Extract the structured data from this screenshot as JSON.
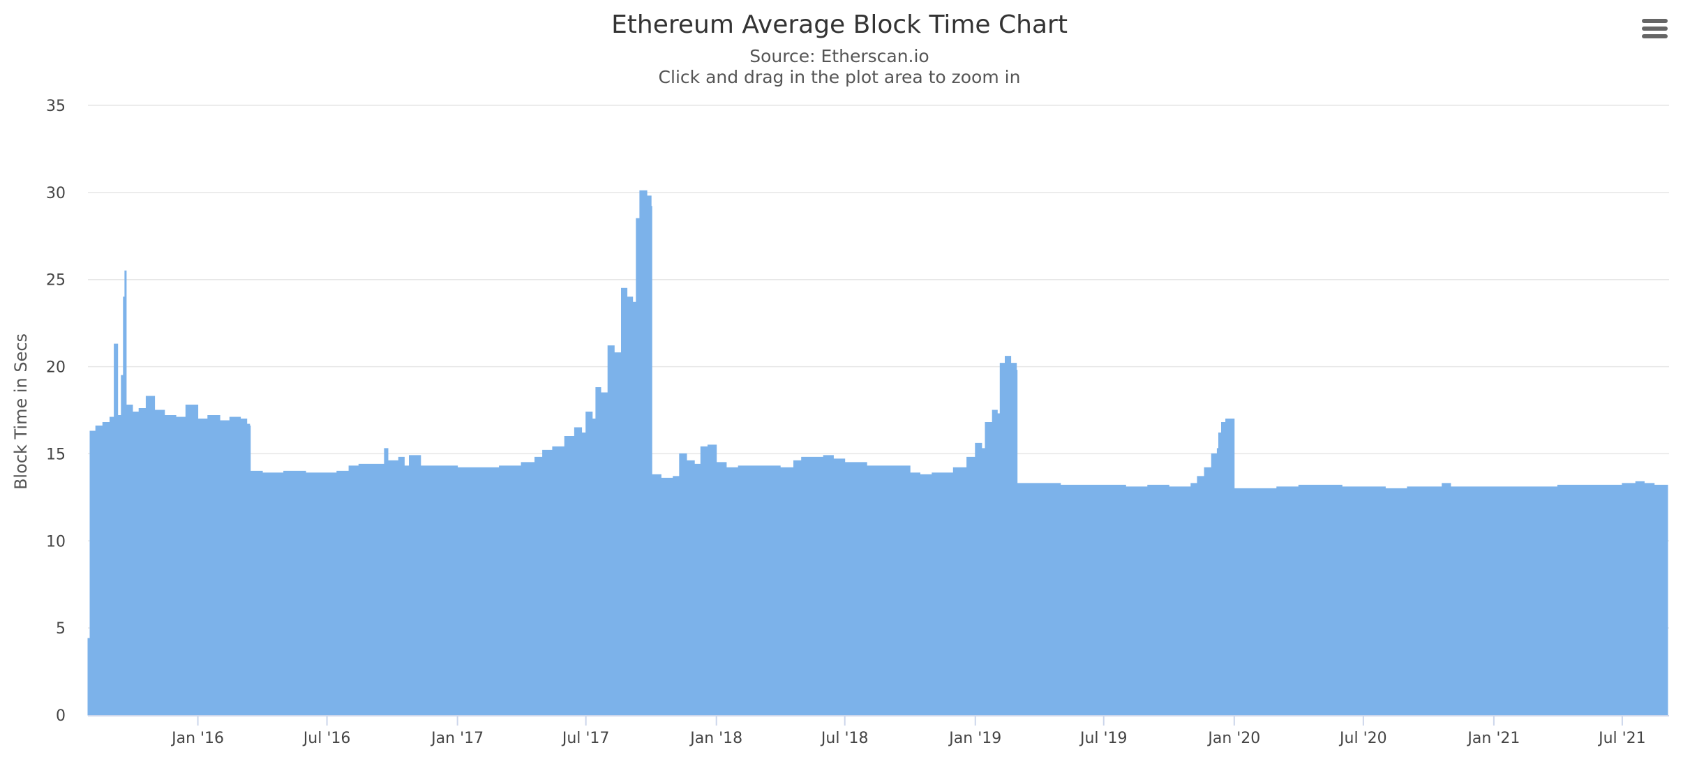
{
  "colors": {
    "series": "#7cb2ea",
    "grid": "#e6e6e6",
    "axis_line": "#ccd6eb",
    "menu_icon": "#666666"
  },
  "menu": {
    "icon": "hamburger-menu-icon"
  },
  "chart_data": {
    "type": "area",
    "title": "Ethereum Average Block Time Chart",
    "subtitle": "Source: Etherscan.io",
    "subtitle2": "Click and drag in the plot area to zoom in",
    "xlabel": "",
    "ylabel": "Block Time in Secs",
    "xlim": [
      "2015-07-30",
      "2021-09-05"
    ],
    "ylim": [
      0,
      35
    ],
    "yticks": [
      0,
      5,
      10,
      15,
      20,
      25,
      30,
      35
    ],
    "xticks": [
      "2016-01-01",
      "2016-07-01",
      "2017-01-01",
      "2017-07-01",
      "2018-01-01",
      "2018-07-01",
      "2019-01-01",
      "2019-07-01",
      "2020-01-01",
      "2020-07-01",
      "2021-01-01",
      "2021-07-01"
    ],
    "xtick_labels": [
      "Jan '16",
      "Jul '16",
      "Jan '17",
      "Jul '17",
      "Jan '18",
      "Jul '18",
      "Jan '19",
      "Jul '19",
      "Jan '20",
      "Jul '20",
      "Jan '21",
      "Jul '21"
    ],
    "grid": true,
    "legend": "none",
    "series": [
      {
        "points": [
          [
            "2015-07-30",
            4.4
          ],
          [
            "2015-08-02",
            16.3
          ],
          [
            "2015-08-10",
            16.6
          ],
          [
            "2015-08-20",
            16.8
          ],
          [
            "2015-08-30",
            17.1
          ],
          [
            "2015-09-05",
            21.3
          ],
          [
            "2015-09-10",
            17.2
          ],
          [
            "2015-09-15",
            19.5
          ],
          [
            "2015-09-18",
            24.0
          ],
          [
            "2015-09-20",
            25.5
          ],
          [
            "2015-09-22",
            17.8
          ],
          [
            "2015-10-01",
            17.4
          ],
          [
            "2015-10-10",
            17.6
          ],
          [
            "2015-10-20",
            18.3
          ],
          [
            "2015-11-01",
            17.5
          ],
          [
            "2015-11-15",
            17.2
          ],
          [
            "2015-12-01",
            17.1
          ],
          [
            "2015-12-15",
            17.8
          ],
          [
            "2016-01-01",
            17.0
          ],
          [
            "2016-01-15",
            17.2
          ],
          [
            "2016-02-01",
            16.9
          ],
          [
            "2016-02-15",
            17.1
          ],
          [
            "2016-03-01",
            17.0
          ],
          [
            "2016-03-10",
            16.7
          ],
          [
            "2016-03-14",
            16.6
          ],
          [
            "2016-03-15",
            14.0
          ],
          [
            "2016-04-01",
            13.9
          ],
          [
            "2016-05-01",
            14.0
          ],
          [
            "2016-06-01",
            13.9
          ],
          [
            "2016-07-01",
            13.9
          ],
          [
            "2016-07-15",
            14.0
          ],
          [
            "2016-08-01",
            14.3
          ],
          [
            "2016-08-15",
            14.4
          ],
          [
            "2016-09-01",
            14.4
          ],
          [
            "2016-09-20",
            15.3
          ],
          [
            "2016-09-25",
            14.6
          ],
          [
            "2016-10-10",
            14.8
          ],
          [
            "2016-10-18",
            14.3
          ],
          [
            "2016-10-25",
            14.9
          ],
          [
            "2016-11-10",
            14.3
          ],
          [
            "2016-12-01",
            14.3
          ],
          [
            "2017-01-01",
            14.2
          ],
          [
            "2017-02-01",
            14.2
          ],
          [
            "2017-03-01",
            14.3
          ],
          [
            "2017-04-01",
            14.5
          ],
          [
            "2017-04-20",
            14.8
          ],
          [
            "2017-05-01",
            15.2
          ],
          [
            "2017-05-15",
            15.4
          ],
          [
            "2017-06-01",
            16.0
          ],
          [
            "2017-06-15",
            16.5
          ],
          [
            "2017-06-25",
            16.2
          ],
          [
            "2017-07-01",
            17.4
          ],
          [
            "2017-07-10",
            17.0
          ],
          [
            "2017-07-15",
            18.8
          ],
          [
            "2017-07-22",
            18.5
          ],
          [
            "2017-08-01",
            21.2
          ],
          [
            "2017-08-10",
            20.8
          ],
          [
            "2017-08-20",
            24.5
          ],
          [
            "2017-08-28",
            24.0
          ],
          [
            "2017-09-05",
            23.7
          ],
          [
            "2017-09-10",
            28.5
          ],
          [
            "2017-09-15",
            30.1
          ],
          [
            "2017-09-25",
            29.8
          ],
          [
            "2017-10-01",
            29.2
          ],
          [
            "2017-10-02",
            13.8
          ],
          [
            "2017-10-15",
            13.6
          ],
          [
            "2017-11-01",
            13.7
          ],
          [
            "2017-11-10",
            15.0
          ],
          [
            "2017-11-20",
            14.6
          ],
          [
            "2017-12-01",
            14.4
          ],
          [
            "2017-12-10",
            15.4
          ],
          [
            "2017-12-20",
            15.5
          ],
          [
            "2018-01-01",
            14.5
          ],
          [
            "2018-01-15",
            14.2
          ],
          [
            "2018-02-01",
            14.3
          ],
          [
            "2018-03-01",
            14.3
          ],
          [
            "2018-04-01",
            14.2
          ],
          [
            "2018-04-20",
            14.6
          ],
          [
            "2018-05-01",
            14.8
          ],
          [
            "2018-06-01",
            14.9
          ],
          [
            "2018-06-15",
            14.7
          ],
          [
            "2018-07-01",
            14.5
          ],
          [
            "2018-08-01",
            14.3
          ],
          [
            "2018-09-01",
            14.3
          ],
          [
            "2018-10-01",
            13.9
          ],
          [
            "2018-10-15",
            13.8
          ],
          [
            "2018-11-01",
            13.9
          ],
          [
            "2018-12-01",
            14.2
          ],
          [
            "2018-12-20",
            14.8
          ],
          [
            "2019-01-01",
            15.6
          ],
          [
            "2019-01-10",
            15.3
          ],
          [
            "2019-01-15",
            16.8
          ],
          [
            "2019-01-25",
            17.5
          ],
          [
            "2019-02-01",
            17.3
          ],
          [
            "2019-02-05",
            20.2
          ],
          [
            "2019-02-12",
            20.6
          ],
          [
            "2019-02-20",
            20.2
          ],
          [
            "2019-02-28",
            19.8
          ],
          [
            "2019-03-01",
            13.3
          ],
          [
            "2019-04-01",
            13.3
          ],
          [
            "2019-05-01",
            13.2
          ],
          [
            "2019-06-01",
            13.2
          ],
          [
            "2019-07-01",
            13.2
          ],
          [
            "2019-08-01",
            13.1
          ],
          [
            "2019-09-01",
            13.2
          ],
          [
            "2019-10-01",
            13.1
          ],
          [
            "2019-11-01",
            13.3
          ],
          [
            "2019-11-10",
            13.7
          ],
          [
            "2019-11-20",
            14.2
          ],
          [
            "2019-11-30",
            15.0
          ],
          [
            "2019-12-08",
            15.3
          ],
          [
            "2019-12-10",
            16.2
          ],
          [
            "2019-12-14",
            16.8
          ],
          [
            "2019-12-20",
            17.0
          ],
          [
            "2019-12-31",
            17.0
          ],
          [
            "2020-01-01",
            13.0
          ],
          [
            "2020-02-01",
            13.0
          ],
          [
            "2020-03-01",
            13.1
          ],
          [
            "2020-04-01",
            13.2
          ],
          [
            "2020-05-01",
            13.2
          ],
          [
            "2020-06-01",
            13.1
          ],
          [
            "2020-07-01",
            13.1
          ],
          [
            "2020-08-01",
            13.0
          ],
          [
            "2020-09-01",
            13.1
          ],
          [
            "2020-10-01",
            13.1
          ],
          [
            "2020-10-20",
            13.3
          ],
          [
            "2020-11-01",
            13.1
          ],
          [
            "2020-12-01",
            13.1
          ],
          [
            "2021-01-01",
            13.1
          ],
          [
            "2021-02-01",
            13.1
          ],
          [
            "2021-03-01",
            13.1
          ],
          [
            "2021-04-01",
            13.2
          ],
          [
            "2021-05-01",
            13.2
          ],
          [
            "2021-06-01",
            13.2
          ],
          [
            "2021-07-01",
            13.3
          ],
          [
            "2021-07-20",
            13.4
          ],
          [
            "2021-08-01",
            13.3
          ],
          [
            "2021-08-15",
            13.2
          ],
          [
            "2021-09-03",
            13.2
          ]
        ]
      }
    ]
  }
}
